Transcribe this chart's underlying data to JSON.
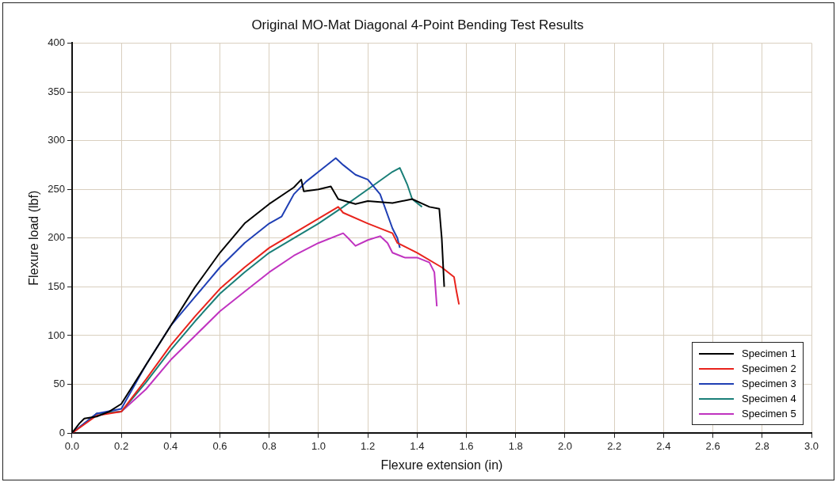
{
  "chart_data": {
    "type": "line",
    "title": "Original MO-Mat Diagonal 4-Point Bending Test Results",
    "xlabel": "Flexure extension (in)",
    "ylabel": "Flexure load (lbf)",
    "xlim": [
      0,
      3.0
    ],
    "xticks": [
      {
        "value": 0,
        "label": "0.0"
      },
      {
        "value": 0.2,
        "label": "0.2"
      },
      {
        "value": 0.4,
        "label": "0.4"
      },
      {
        "value": 0.6,
        "label": "0.6"
      },
      {
        "value": 0.8,
        "label": "0.8"
      },
      {
        "value": 1.0,
        "label": "1.0"
      },
      {
        "value": 1.2,
        "label": "1.2"
      },
      {
        "value": 1.4,
        "label": "1.4"
      },
      {
        "value": 1.6,
        "label": "1.6"
      },
      {
        "value": 1.8,
        "label": "1.8"
      },
      {
        "value": 2.0,
        "label": "2.0"
      },
      {
        "value": 2.2,
        "label": "2.2"
      },
      {
        "value": 2.4,
        "label": "2.4"
      },
      {
        "value": 2.6,
        "label": "2.6"
      },
      {
        "value": 2.8,
        "label": "2.8"
      },
      {
        "value": 3.0,
        "label": "3.0"
      }
    ],
    "ylim": [
      0,
      400
    ],
    "yticks": [
      0,
      50,
      100,
      150,
      200,
      250,
      300,
      350,
      400
    ],
    "grid": true,
    "legend": "bottom right",
    "marker": "none",
    "line_style": "solid",
    "series": [
      {
        "name": "Specimen 1",
        "color": "#000000",
        "x": [
          0,
          0.03,
          0.05,
          0.1,
          0.15,
          0.2,
          0.3,
          0.4,
          0.5,
          0.6,
          0.7,
          0.8,
          0.9,
          0.93,
          0.94,
          1.0,
          1.05,
          1.08,
          1.15,
          1.2,
          1.3,
          1.38,
          1.45,
          1.49,
          1.5,
          1.51
        ],
        "values": [
          0,
          10,
          15,
          17,
          22,
          30,
          70,
          110,
          150,
          185,
          215,
          235,
          252,
          260,
          248,
          250,
          253,
          240,
          235,
          238,
          236,
          240,
          232,
          230,
          200,
          150
        ]
      },
      {
        "name": "Specimen 2",
        "color": "#e8231c",
        "x": [
          0,
          0.1,
          0.2,
          0.3,
          0.4,
          0.5,
          0.6,
          0.7,
          0.8,
          0.9,
          1.0,
          1.08,
          1.1,
          1.2,
          1.3,
          1.32,
          1.4,
          1.5,
          1.55,
          1.56,
          1.57
        ],
        "values": [
          0,
          18,
          22,
          55,
          90,
          120,
          148,
          170,
          190,
          205,
          220,
          232,
          226,
          215,
          205,
          195,
          185,
          170,
          160,
          145,
          132
        ]
      },
      {
        "name": "Specimen 3",
        "color": "#1f3fb4",
        "x": [
          0,
          0.1,
          0.2,
          0.3,
          0.4,
          0.5,
          0.6,
          0.7,
          0.8,
          0.85,
          0.9,
          0.95,
          1.0,
          1.07,
          1.1,
          1.15,
          1.2,
          1.25,
          1.3,
          1.32,
          1.33
        ],
        "values": [
          0,
          20,
          25,
          70,
          110,
          140,
          170,
          195,
          215,
          222,
          245,
          258,
          268,
          282,
          275,
          265,
          260,
          245,
          210,
          200,
          190
        ]
      },
      {
        "name": "Specimen 4",
        "color": "#1a7f78",
        "x": [
          0,
          0.1,
          0.2,
          0.3,
          0.4,
          0.5,
          0.6,
          0.7,
          0.8,
          0.9,
          1.0,
          1.1,
          1.2,
          1.3,
          1.33,
          1.36,
          1.38,
          1.42
        ],
        "values": [
          0,
          20,
          22,
          52,
          85,
          115,
          143,
          165,
          185,
          200,
          215,
          232,
          250,
          268,
          272,
          255,
          240,
          232
        ]
      },
      {
        "name": "Specimen 5",
        "color": "#c033c0",
        "x": [
          0,
          0.1,
          0.2,
          0.3,
          0.4,
          0.5,
          0.6,
          0.7,
          0.8,
          0.9,
          1.0,
          1.1,
          1.12,
          1.15,
          1.2,
          1.25,
          1.28,
          1.3,
          1.35,
          1.4,
          1.45,
          1.47,
          1.48
        ],
        "values": [
          0,
          20,
          22,
          45,
          75,
          100,
          125,
          145,
          165,
          182,
          195,
          205,
          200,
          192,
          198,
          202,
          195,
          185,
          180,
          180,
          175,
          165,
          130
        ]
      }
    ]
  }
}
